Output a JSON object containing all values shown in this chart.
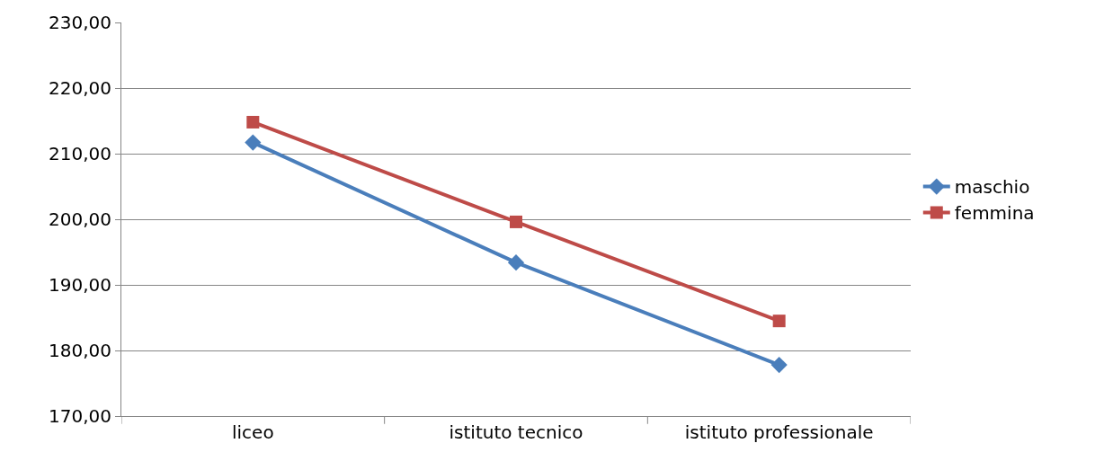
{
  "chart_data": {
    "type": "line",
    "categories": [
      "liceo",
      "istituto tecnico",
      "istituto professionale"
    ],
    "series": [
      {
        "name": "maschio",
        "color": "#4a7ebb",
        "marker": "diamond",
        "values": [
          211.7,
          193.4,
          177.8
        ]
      },
      {
        "name": "femmina",
        "color": "#be4b48",
        "marker": "square",
        "values": [
          214.8,
          199.6,
          184.5
        ]
      }
    ],
    "ylim": [
      170,
      230
    ],
    "yticks": [
      {
        "value": 170,
        "label": "170,00"
      },
      {
        "value": 180,
        "label": "180,00"
      },
      {
        "value": 190,
        "label": "190,00"
      },
      {
        "value": 200,
        "label": "200,00"
      },
      {
        "value": 210,
        "label": "210,00"
      },
      {
        "value": 220,
        "label": "220,00"
      },
      {
        "value": 230,
        "label": "230,00"
      }
    ],
    "grid": "y",
    "legend": "right",
    "line_style": "solid"
  }
}
